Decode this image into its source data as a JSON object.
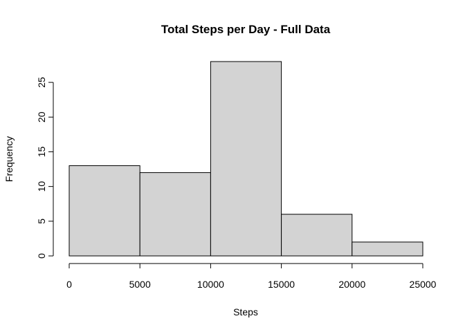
{
  "chart_data": {
    "type": "bar",
    "title": "Total Steps per Day - Full Data",
    "xlabel": "Steps",
    "ylabel": "Frequency",
    "bins": [
      {
        "from": 0,
        "to": 5000,
        "count": 13
      },
      {
        "from": 5000,
        "to": 10000,
        "count": 12
      },
      {
        "from": 10000,
        "to": 15000,
        "count": 28
      },
      {
        "from": 15000,
        "to": 20000,
        "count": 6
      },
      {
        "from": 20000,
        "to": 25000,
        "count": 2
      }
    ],
    "xlim": [
      0,
      25000
    ],
    "ylim": [
      0,
      28
    ],
    "x_ticks": [
      0,
      5000,
      10000,
      15000,
      20000,
      25000
    ],
    "y_ticks": [
      0,
      5,
      10,
      15,
      20,
      25
    ],
    "bar_color": "#d3d3d3",
    "grid": false,
    "legend": "none"
  }
}
